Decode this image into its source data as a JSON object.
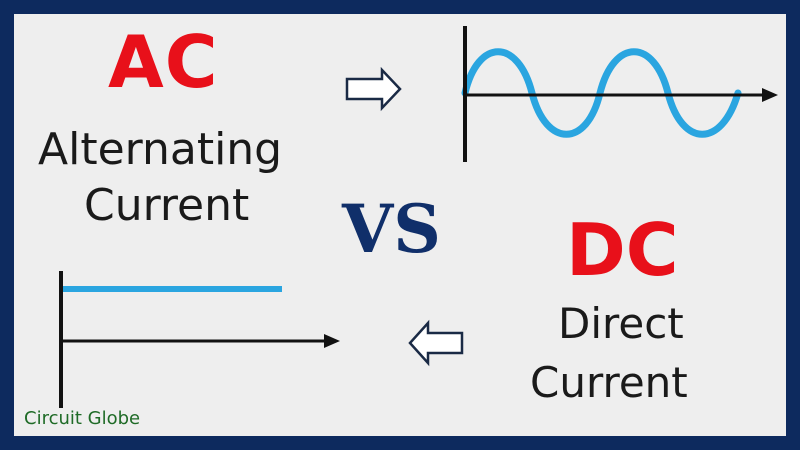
{
  "ac": {
    "title": "AC",
    "line1": "Alternating",
    "line2": "Current"
  },
  "vs": "VS",
  "dc": {
    "title": "DC",
    "line1": "Direct",
    "line2": "Current"
  },
  "watermark": "Circuit Globe",
  "colors": {
    "border": "#0d2a5e",
    "background": "#eeeeee",
    "title_red": "#e8101a",
    "vs_navy": "#102f6a",
    "waveform_blue": "#2aa5e0",
    "axis_black": "#111111",
    "watermark_green": "#1f6b27"
  },
  "icons": {
    "right_arrow": "hollow-right-arrow",
    "left_arrow": "hollow-left-arrow"
  }
}
